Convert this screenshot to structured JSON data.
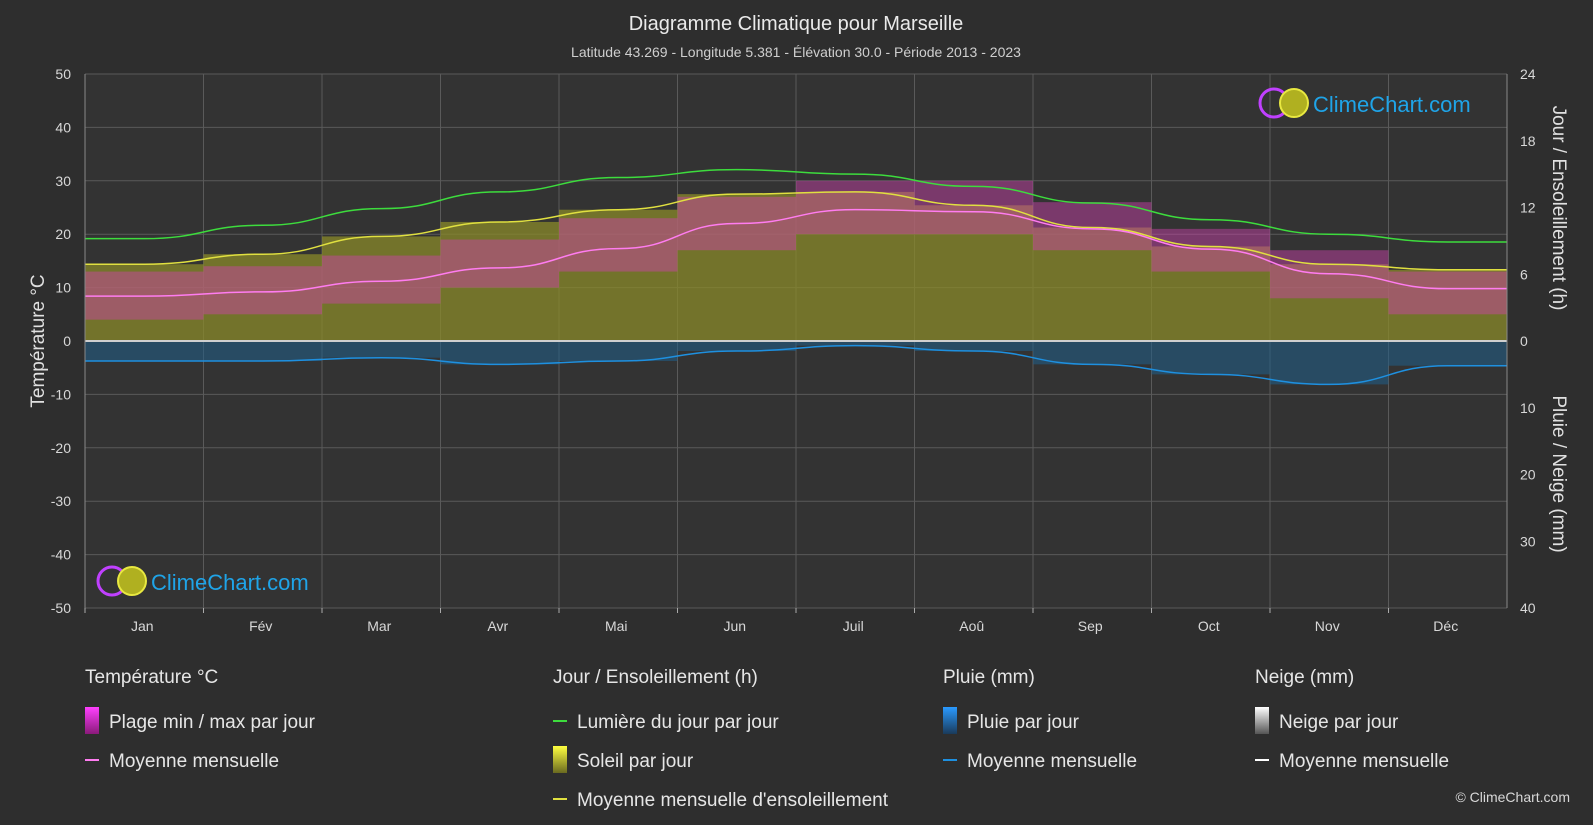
{
  "title": "Diagramme Climatique pour Marseille",
  "subtitle": "Latitude 43.269 - Longitude 5.381 - Élévation 30.0 - Période 2013 - 2023",
  "logo_text": "ClimeChart.com",
  "copyright": "© ClimeChart.com",
  "colors": {
    "background": "#2e2e2e",
    "grid": "#5a5a5a",
    "daylight": "#3ddc3d",
    "sunshine_fill": "#8a8a2a",
    "sunshine_line": "#e0e040",
    "temp_range": "#d040b0",
    "temp_mean": "#ff7cf0",
    "rain_bar": "#1f5e8a",
    "rain_line": "#1e90e0",
    "snow_line": "#ffffff",
    "logo_blue": "#1fa4e8"
  },
  "chart_data": {
    "type": "line",
    "categories": [
      "Jan",
      "Fév",
      "Mar",
      "Avr",
      "Mai",
      "Jun",
      "Juil",
      "Aoû",
      "Sep",
      "Oct",
      "Nov",
      "Déc"
    ],
    "left_axis": {
      "label": "Température °C",
      "ylim": [
        -50,
        50
      ],
      "ticks": [
        50,
        40,
        30,
        20,
        10,
        0,
        -10,
        -20,
        -30,
        -40,
        -50
      ]
    },
    "right_axis_top": {
      "label": "Jour / Ensoleillement (h)",
      "ylim": [
        0,
        24
      ],
      "ticks": [
        24,
        18,
        12,
        6,
        0
      ]
    },
    "right_axis_bottom": {
      "label": "Pluie / Neige (mm)",
      "ylim": [
        0,
        40
      ],
      "ticks": [
        0,
        10,
        20,
        30,
        40
      ]
    },
    "grid": true,
    "series": [
      {
        "name": "Lumière du jour par jour",
        "axis": "hours",
        "values": [
          9.2,
          10.4,
          11.9,
          13.4,
          14.7,
          15.4,
          15.0,
          13.9,
          12.4,
          10.9,
          9.6,
          8.9
        ]
      },
      {
        "name": "Moyenne mensuelle d'ensoleillement",
        "axis": "hours",
        "values": [
          6.9,
          7.8,
          9.4,
          10.7,
          11.8,
          13.2,
          13.4,
          12.2,
          10.2,
          8.5,
          6.9,
          6.4
        ]
      },
      {
        "name": "Moyenne mensuelle",
        "axis": "temperature",
        "values": [
          8.4,
          9.2,
          11.2,
          13.7,
          17.3,
          22.0,
          24.6,
          24.2,
          21.0,
          17.2,
          12.6,
          9.8
        ]
      },
      {
        "name": "Moyenne mensuelle",
        "axis": "precipitation",
        "values": [
          3.0,
          3.0,
          2.5,
          3.5,
          3.0,
          1.5,
          0.7,
          1.5,
          3.5,
          5.0,
          6.5,
          3.7
        ]
      }
    ],
    "temperature_range": {
      "min": [
        4,
        5,
        7,
        10,
        13,
        17,
        20,
        20,
        17,
        13,
        8,
        5
      ],
      "max": [
        13,
        14,
        16,
        19,
        23,
        27,
        30,
        30,
        26,
        21,
        17,
        13
      ]
    }
  },
  "legend": {
    "groups": [
      {
        "title": "Température °C",
        "items": [
          "Plage min / max par jour",
          "Moyenne mensuelle"
        ]
      },
      {
        "title": "Jour / Ensoleillement (h)",
        "items": [
          "Lumière du jour par jour",
          "Soleil par jour",
          "Moyenne mensuelle d'ensoleillement"
        ]
      },
      {
        "title": "Pluie (mm)",
        "items": [
          "Pluie par jour",
          "Moyenne mensuelle"
        ]
      },
      {
        "title": "Neige (mm)",
        "items": [
          "Neige par jour",
          "Moyenne mensuelle"
        ]
      }
    ]
  }
}
